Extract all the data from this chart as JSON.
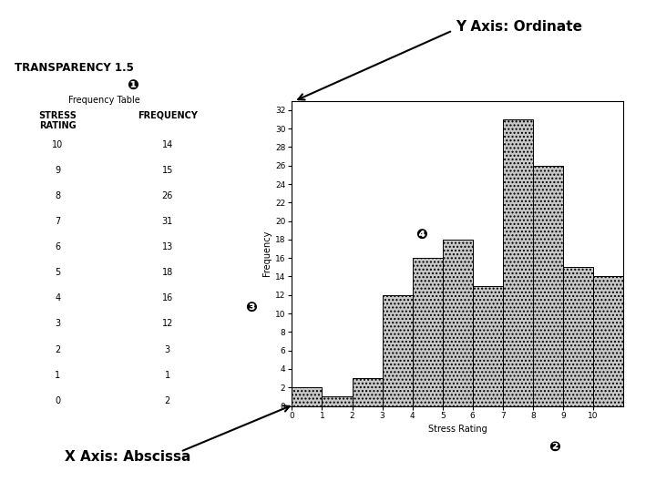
{
  "title": "TRANSPARENCY 1.5",
  "stress_ratings": [
    0,
    1,
    2,
    3,
    4,
    5,
    6,
    7,
    8,
    9,
    10
  ],
  "frequencies": [
    2,
    1,
    3,
    12,
    16,
    18,
    13,
    31,
    26,
    15,
    14
  ],
  "xlabel": "Stress Rating",
  "ylabel": "Frequency",
  "xlim": [
    0,
    11
  ],
  "ylim": [
    0,
    33
  ],
  "yticks": [
    0,
    2,
    4,
    6,
    8,
    10,
    12,
    14,
    16,
    18,
    20,
    22,
    24,
    26,
    28,
    30,
    32
  ],
  "xticks": [
    0,
    1,
    2,
    3,
    4,
    5,
    6,
    7,
    8,
    9,
    10
  ],
  "bar_color": "#c8c8c8",
  "bar_edge_color": "#000000",
  "y_axis_label": "Y Axis: Ordinate",
  "x_axis_label": "X Axis: Abscissa",
  "freq_table_title": "Frequency Table",
  "table_col1": "STRESS\nRATING",
  "table_col2": "FREQUENCY",
  "circled_nums": [
    "❶",
    "❷",
    "❸",
    "❹"
  ],
  "bg_color": "#ffffff",
  "table_ratings": [
    10,
    9,
    8,
    7,
    6,
    5,
    4,
    3,
    2,
    1,
    0
  ],
  "table_freqs": [
    14,
    15,
    26,
    31,
    13,
    18,
    16,
    12,
    3,
    1,
    2
  ]
}
